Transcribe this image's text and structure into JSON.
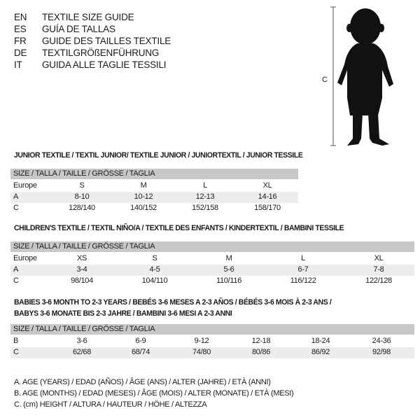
{
  "languages": [
    {
      "code": "EN",
      "name": "TEXTILE SIZE GUIDE"
    },
    {
      "code": "ES",
      "name": "GUÍA DE TALLAS"
    },
    {
      "code": "FR",
      "name": "GUIDE DES TAILLES TEXTILE"
    },
    {
      "code": "DE",
      "name": "TEXTILGRÖßENFÜHRUNG"
    },
    {
      "code": "IT",
      "name": "GUIDA ALLE TAGLIE TESSILI"
    }
  ],
  "figure": {
    "measure_label": "C"
  },
  "junior": {
    "title": "JUNIOR TEXTILE / TEXTIL JUNIOR/ TEXTILE JUNIOR / JUNIORTEXTIL / JUNIOR TESSILE",
    "header": "SIZE / TALLA / TAILLE / GRÖSSE / TAGLIA",
    "rows": [
      {
        "label": "Europe",
        "values": [
          "S",
          "M",
          "L",
          "XL"
        ]
      },
      {
        "label": "A",
        "values": [
          "8-10",
          "10-12",
          "12-13",
          "14-16"
        ]
      },
      {
        "label": "C",
        "values": [
          "128/140",
          "140/152",
          "152/158",
          "158/170"
        ]
      }
    ]
  },
  "children": {
    "title": "CHILDREN'S TEXTILE / TEXTIL NIÑO/A / TEXTILE DES ENFANTS / KINDERTEXTIL / BAMBINI TESSILE",
    "header": "SIZE / TALLA / TAILLE / GRÖSSE / TAGLIA",
    "rows": [
      {
        "label": "Europe",
        "values": [
          "XS",
          "S",
          "M",
          "L",
          "XL"
        ]
      },
      {
        "label": "A",
        "values": [
          "3-4",
          "4-5",
          "5-6",
          "6-7",
          "7-8"
        ]
      },
      {
        "label": "C",
        "values": [
          "98/104",
          "104/110",
          "110/116",
          "116/122",
          "122/128"
        ]
      }
    ]
  },
  "babies": {
    "title_line1": "BABIES 3-6 MONTH TO 2-3 YEARS / BEBÉS 3-6 MESES A 2-3 AÑOS / BÉBÉS 3-6 MOIS À 2-3 ANS /",
    "title_line2": "BABYS 3-6 MONATE BIS 2-3 JAHRE / BAMBINI 3-6 MESI A 2-3 ANNI",
    "header": "SIZE / TALLA / TAILLE / GRÖSSE / TAGLIA",
    "rows": [
      {
        "label": "B",
        "values": [
          "3-6",
          "6-9",
          "9-12",
          "12-18",
          "18-24",
          "24-36"
        ]
      },
      {
        "label": "C",
        "values": [
          "62/68",
          "68/74",
          "74/80",
          "80/86",
          "86/92",
          "92/98"
        ]
      }
    ]
  },
  "legend": [
    "A. AGE (YEARS) / EDAD (AÑOS) / ÂGE (ANS) / ALTER (JAHRE) / ETÀ (ANNI)",
    "B. AGE (MONTHS) / EDAD (MESES) / ÂGE (MOIS) / ALTER (MONATE) / ETÀ (MESI)",
    "C. (cm) HEIGHT / ALTURA / HAUTEUR / HÖHE / ALTEZZA"
  ]
}
